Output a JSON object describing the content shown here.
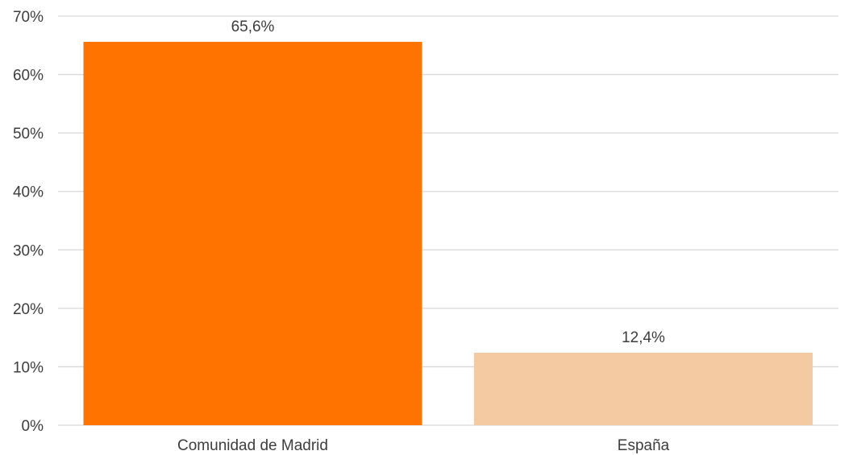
{
  "chart_data": {
    "type": "bar",
    "categories": [
      "Comunidad de Madrid",
      "España"
    ],
    "values": [
      65.6,
      12.4
    ],
    "data_labels": [
      "65,6%",
      "12,4%"
    ],
    "ylim": [
      0,
      70
    ],
    "yticks": [
      0,
      10,
      20,
      30,
      40,
      50,
      60,
      70
    ],
    "ytick_labels": [
      "0%",
      "10%",
      "20%",
      "30%",
      "40%",
      "50%",
      "60%",
      "70%"
    ],
    "grid": true,
    "bar_colors": [
      "#ff7300",
      "#f4caa3"
    ],
    "title": "",
    "xlabel": "",
    "ylabel": ""
  }
}
